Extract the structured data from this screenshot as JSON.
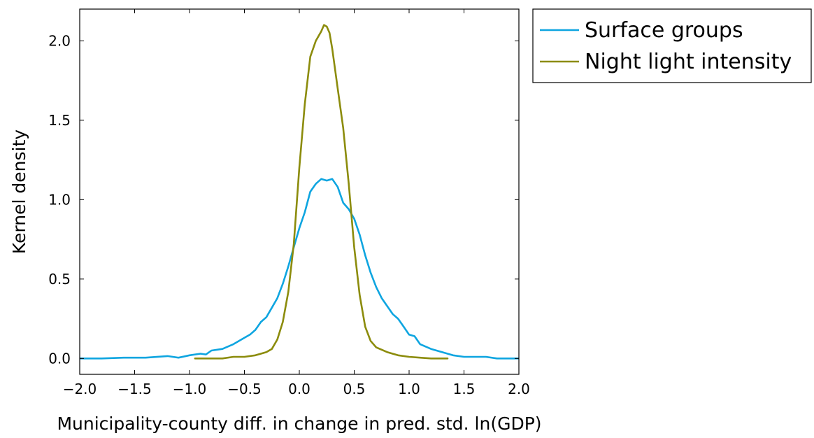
{
  "chart_data": {
    "type": "line",
    "title": "",
    "xlabel": "Municipality-county diff. in change in pred. std. ln(GDP)",
    "ylabel": "Kernel density",
    "xlim": [
      -2.0,
      2.0
    ],
    "ylim": [
      -0.1,
      2.2
    ],
    "xticks": [
      -2.0,
      -1.5,
      -1.0,
      -0.5,
      0.0,
      0.5,
      1.0,
      1.5,
      2.0
    ],
    "xtick_labels": [
      "−2.0",
      "−1.5",
      "−1.0",
      "−0.5",
      "0.0",
      "0.5",
      "1.0",
      "1.5",
      "2.0"
    ],
    "yticks": [
      0.0,
      0.5,
      1.0,
      1.5,
      2.0
    ],
    "ytick_labels": [
      "0.0",
      "0.5",
      "1.0",
      "1.5",
      "2.0"
    ],
    "grid": false,
    "legend_position": "outside-top-right",
    "series": [
      {
        "name": "Surface groups",
        "color": "#0ea5e0",
        "x": [
          -2.0,
          -1.8,
          -1.6,
          -1.4,
          -1.2,
          -1.1,
          -1.0,
          -0.9,
          -0.85,
          -0.8,
          -0.7,
          -0.6,
          -0.5,
          -0.45,
          -0.4,
          -0.35,
          -0.3,
          -0.25,
          -0.2,
          -0.15,
          -0.1,
          -0.05,
          0.0,
          0.05,
          0.1,
          0.15,
          0.2,
          0.25,
          0.3,
          0.35,
          0.4,
          0.45,
          0.5,
          0.55,
          0.6,
          0.65,
          0.7,
          0.75,
          0.8,
          0.85,
          0.9,
          0.95,
          1.0,
          1.05,
          1.1,
          1.2,
          1.3,
          1.4,
          1.5,
          1.6,
          1.7,
          1.8,
          2.0
        ],
        "y": [
          0.0,
          0.0,
          0.005,
          0.005,
          0.015,
          0.005,
          0.02,
          0.03,
          0.025,
          0.05,
          0.06,
          0.09,
          0.13,
          0.15,
          0.18,
          0.23,
          0.26,
          0.32,
          0.38,
          0.47,
          0.58,
          0.7,
          0.82,
          0.92,
          1.05,
          1.1,
          1.13,
          1.12,
          1.13,
          1.08,
          0.98,
          0.94,
          0.88,
          0.78,
          0.65,
          0.54,
          0.45,
          0.38,
          0.33,
          0.28,
          0.25,
          0.2,
          0.15,
          0.14,
          0.09,
          0.06,
          0.04,
          0.02,
          0.01,
          0.01,
          0.01,
          0.0,
          0.0
        ]
      },
      {
        "name": "Night light intensity",
        "color": "#8c8c0c",
        "x": [
          -0.95,
          -0.8,
          -0.7,
          -0.6,
          -0.5,
          -0.4,
          -0.3,
          -0.25,
          -0.2,
          -0.15,
          -0.1,
          -0.05,
          0.0,
          0.05,
          0.1,
          0.15,
          0.2,
          0.225,
          0.25,
          0.275,
          0.3,
          0.35,
          0.4,
          0.45,
          0.5,
          0.55,
          0.6,
          0.65,
          0.7,
          0.8,
          0.9,
          1.0,
          1.1,
          1.2,
          1.35
        ],
        "y": [
          0.0,
          0.0,
          0.0,
          0.01,
          0.01,
          0.02,
          0.04,
          0.06,
          0.12,
          0.23,
          0.42,
          0.72,
          1.2,
          1.6,
          1.9,
          2.0,
          2.06,
          2.1,
          2.09,
          2.05,
          1.95,
          1.7,
          1.45,
          1.1,
          0.7,
          0.4,
          0.2,
          0.11,
          0.07,
          0.04,
          0.02,
          0.01,
          0.005,
          0.0,
          0.0
        ]
      }
    ]
  }
}
